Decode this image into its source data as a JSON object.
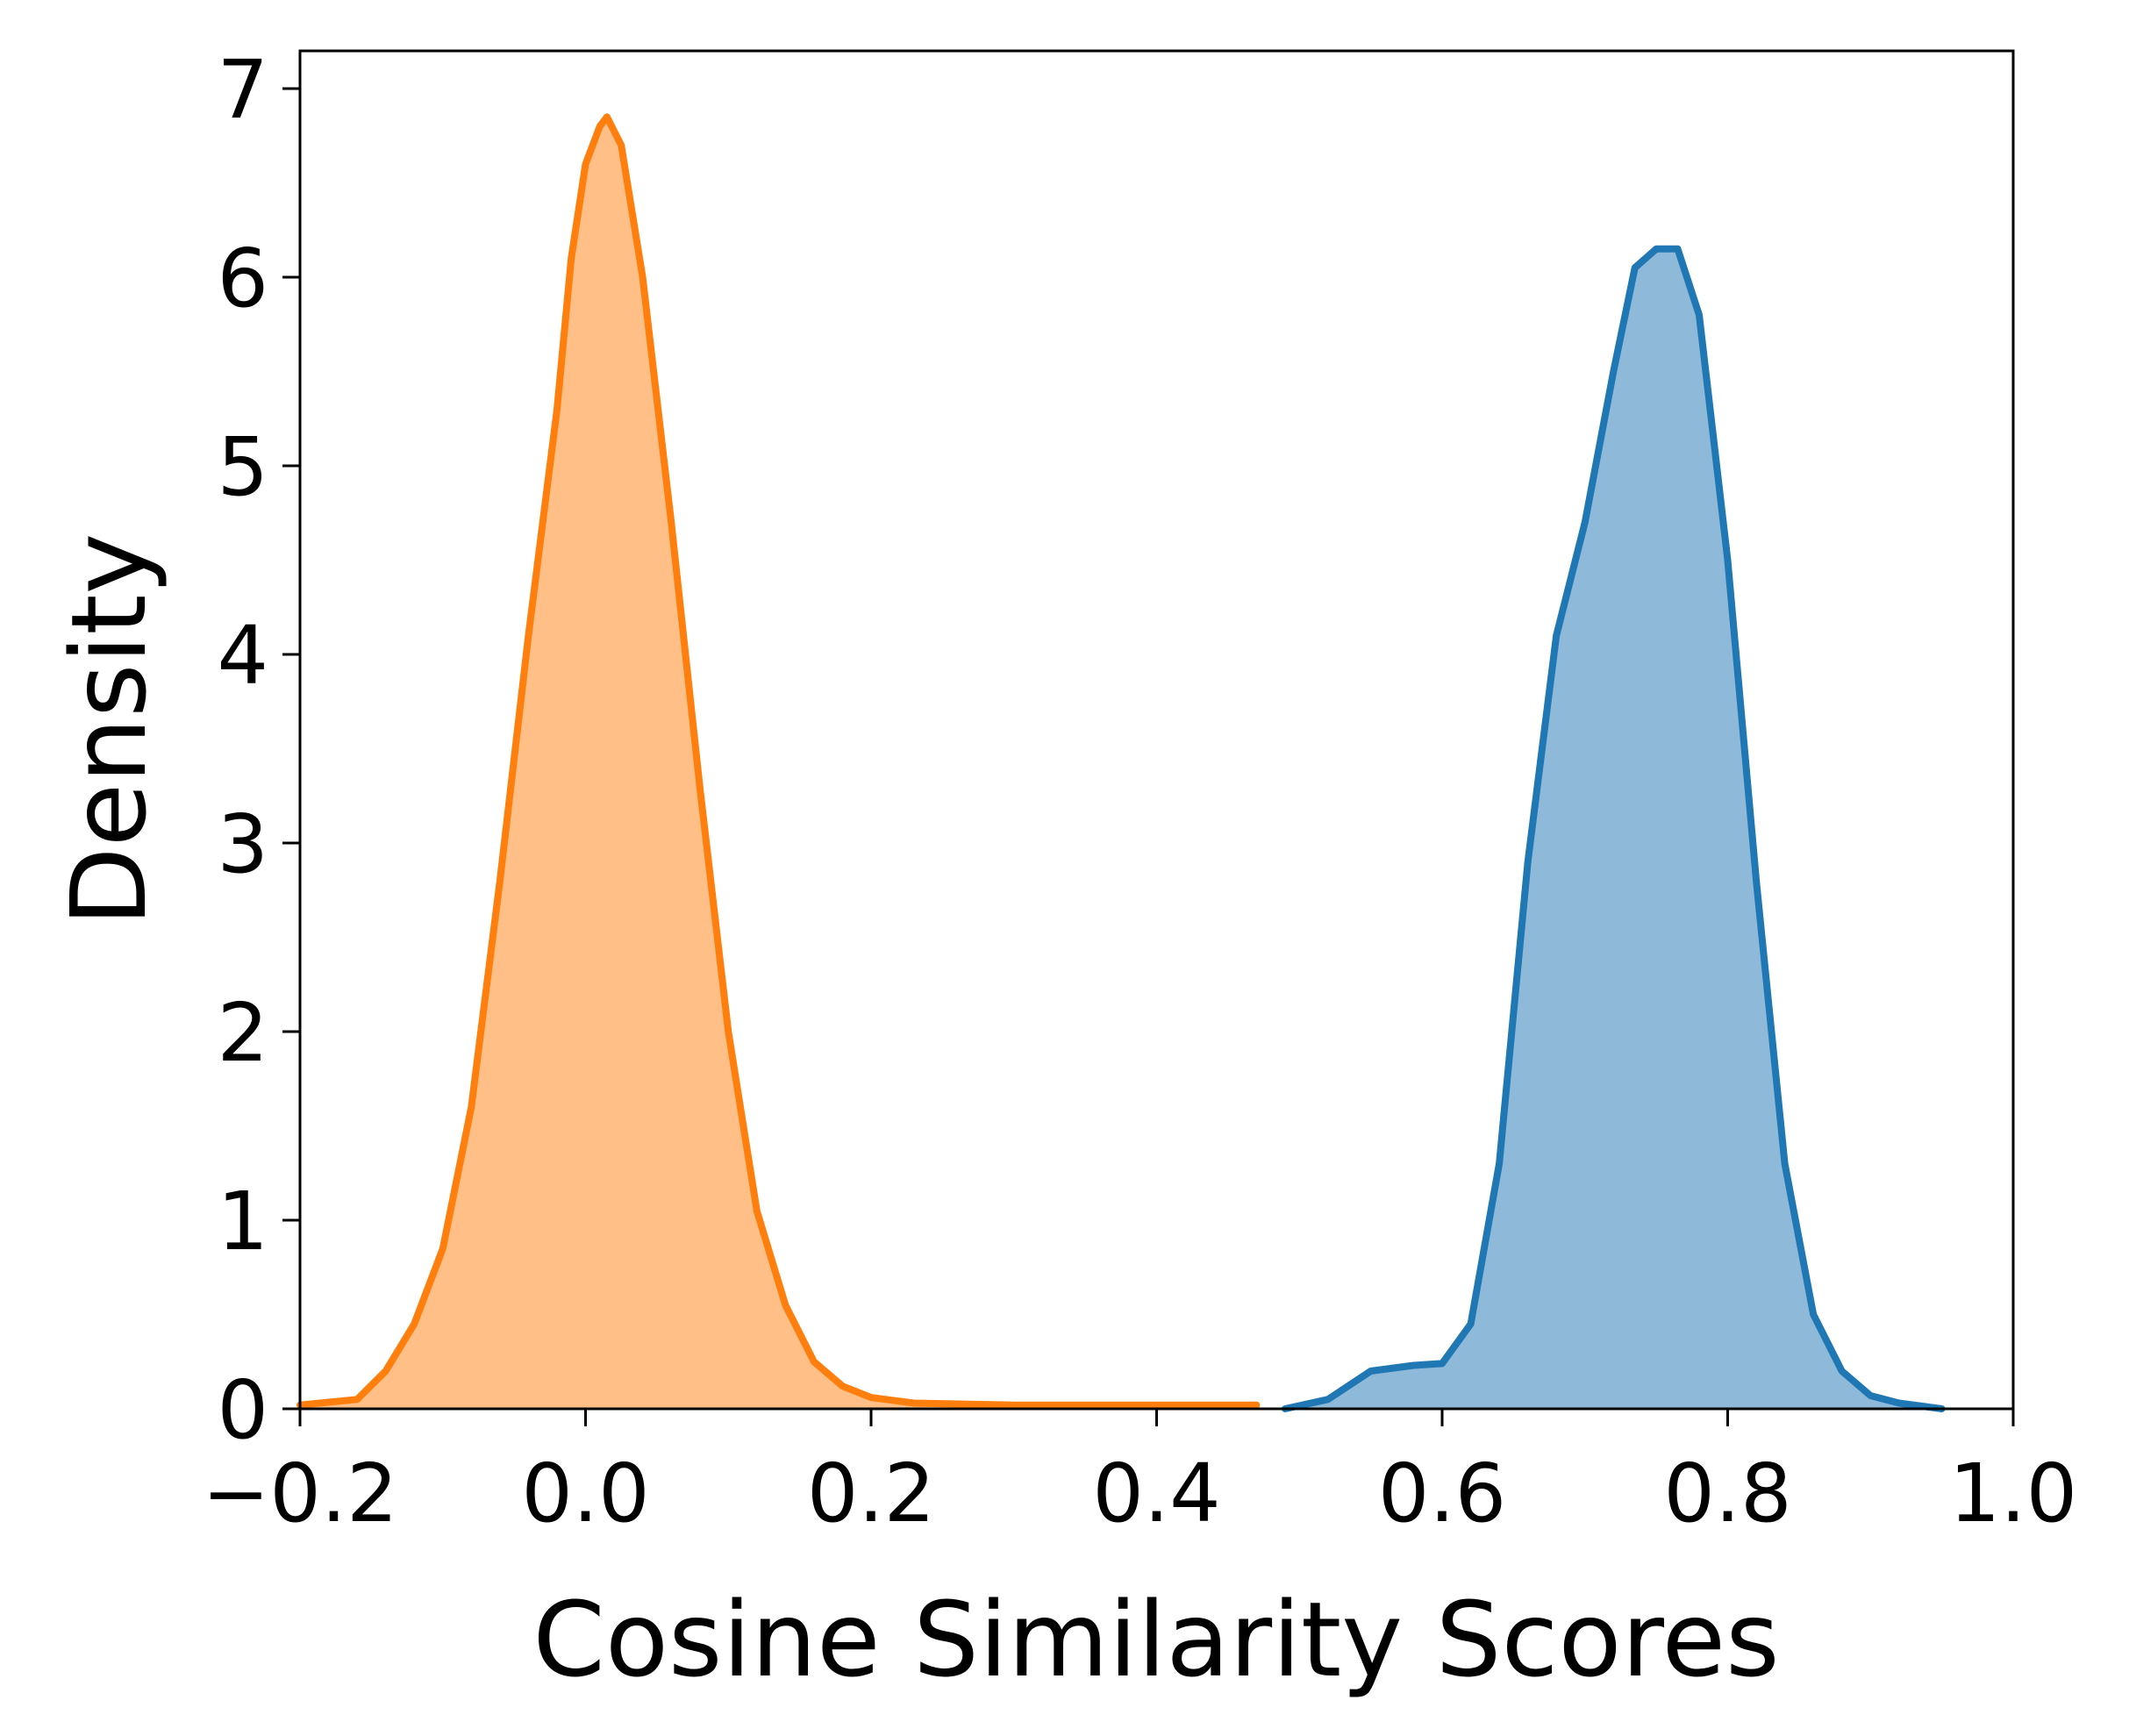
{
  "chart_data": {
    "type": "area",
    "title": "",
    "xlabel": "Cosine Similarity Scores",
    "ylabel": "Density",
    "xlim": [
      -0.2,
      1.0
    ],
    "ylim": [
      0,
      7.2
    ],
    "grid": false,
    "legend": "none",
    "x_ticks": [
      "−0.2",
      "0.0",
      "0.2",
      "0.4",
      "0.6",
      "0.8",
      "1.0"
    ],
    "x_tick_values": [
      -0.2,
      0.0,
      0.2,
      0.4,
      0.6,
      0.8,
      1.0
    ],
    "y_ticks": [
      "0",
      "1",
      "2",
      "3",
      "4",
      "5",
      "6",
      "7"
    ],
    "y_tick_values": [
      0,
      1,
      2,
      3,
      4,
      5,
      6,
      7
    ],
    "series": [
      {
        "color": "#ff7f0e",
        "fill": "#ffbf86",
        "points": [
          [
            -0.2,
            0.02
          ],
          [
            -0.16,
            0.05
          ],
          [
            -0.14,
            0.2
          ],
          [
            -0.12,
            0.45
          ],
          [
            -0.1,
            0.85
          ],
          [
            -0.08,
            1.6
          ],
          [
            -0.06,
            2.8
          ],
          [
            -0.04,
            4.1
          ],
          [
            -0.02,
            5.3
          ],
          [
            -0.01,
            6.1
          ],
          [
            0.0,
            6.6
          ],
          [
            0.01,
            6.8
          ],
          [
            0.015,
            6.85
          ],
          [
            0.025,
            6.7
          ],
          [
            0.04,
            6.0
          ],
          [
            0.06,
            4.7
          ],
          [
            0.08,
            3.3
          ],
          [
            0.1,
            2.0
          ],
          [
            0.12,
            1.05
          ],
          [
            0.14,
            0.55
          ],
          [
            0.16,
            0.25
          ],
          [
            0.18,
            0.12
          ],
          [
            0.2,
            0.06
          ],
          [
            0.23,
            0.03
          ],
          [
            0.3,
            0.02
          ],
          [
            0.47,
            0.02
          ]
        ]
      },
      {
        "color": "#1f77b4",
        "fill": "#8fb9d9",
        "points": [
          [
            0.49,
            0.0
          ],
          [
            0.52,
            0.05
          ],
          [
            0.55,
            0.2
          ],
          [
            0.58,
            0.23
          ],
          [
            0.6,
            0.24
          ],
          [
            0.62,
            0.45
          ],
          [
            0.64,
            1.3
          ],
          [
            0.66,
            2.9
          ],
          [
            0.68,
            4.1
          ],
          [
            0.7,
            4.7
          ],
          [
            0.72,
            5.5
          ],
          [
            0.735,
            6.05
          ],
          [
            0.75,
            6.15
          ],
          [
            0.765,
            6.15
          ],
          [
            0.78,
            5.8
          ],
          [
            0.8,
            4.5
          ],
          [
            0.82,
            2.8
          ],
          [
            0.84,
            1.3
          ],
          [
            0.86,
            0.5
          ],
          [
            0.88,
            0.2
          ],
          [
            0.9,
            0.07
          ],
          [
            0.92,
            0.03
          ],
          [
            0.95,
            0.0
          ]
        ]
      }
    ]
  }
}
